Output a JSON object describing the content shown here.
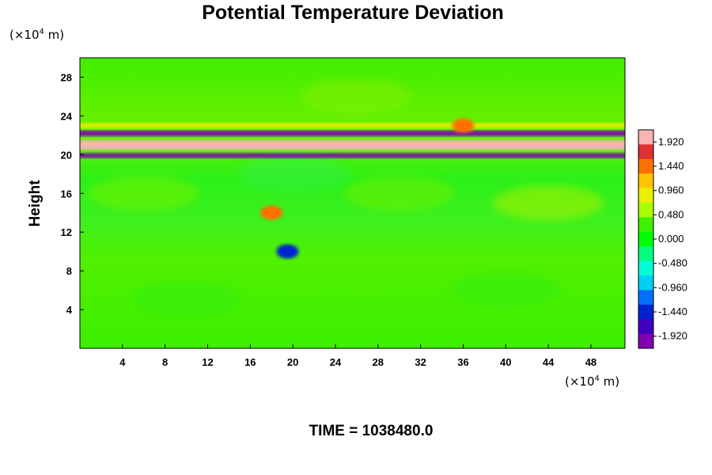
{
  "chart_data": {
    "type": "heatmap",
    "title": "Potential Temperature Deviation",
    "ylabel": "Height",
    "x_unit": {
      "prefix": "(×10",
      "exp": "4",
      "suffix": " m)"
    },
    "y_unit": {
      "prefix": "(×10",
      "exp": "4",
      "suffix": " m)"
    },
    "xlim": [
      0,
      51.2
    ],
    "ylim": [
      0,
      30
    ],
    "x_ticks": [
      "4",
      "8",
      "12",
      "16",
      "20",
      "24",
      "28",
      "32",
      "36",
      "40",
      "44",
      "48"
    ],
    "y_ticks": [
      "4",
      "8",
      "12",
      "16",
      "20",
      "24",
      "28"
    ],
    "colorbar": {
      "min": -2.16,
      "max": 2.16,
      "labels": [
        "1.920",
        "1.440",
        "0.960",
        "0.480",
        "0.000",
        "-0.480",
        "-0.960",
        "-1.440",
        "-1.920"
      ],
      "label_values": [
        1.92,
        1.44,
        0.96,
        0.48,
        0.0,
        -0.48,
        -0.96,
        -1.44,
        -1.92
      ],
      "colors": [
        "#f8b4b4",
        "#e03030",
        "#ff7000",
        "#ffc400",
        "#e8f000",
        "#a8ff00",
        "#40f000",
        "#00ff00",
        "#00ff80",
        "#00ffd8",
        "#00d0f0",
        "#0070ff",
        "#0020d0",
        "#4000c0",
        "#8000b0"
      ]
    },
    "background_value": 0.0,
    "features": [
      {
        "kind": "band",
        "y": 21.0,
        "thickness": 1.0,
        "value": 2.1
      },
      {
        "kind": "band",
        "y": 22.2,
        "thickness": 0.6,
        "value": -1.9
      },
      {
        "kind": "band",
        "y": 19.9,
        "thickness": 0.5,
        "value": -1.9
      },
      {
        "kind": "band",
        "y": 23.0,
        "thickness": 0.5,
        "value": 0.9
      },
      {
        "kind": "blob",
        "x": 18.0,
        "y": 14.0,
        "value": 1.5
      },
      {
        "kind": "blob",
        "x": 19.5,
        "y": 10.0,
        "value": -1.5
      },
      {
        "kind": "blob",
        "x": 36.0,
        "y": 23.0,
        "value": 1.4
      }
    ],
    "time_label": "TIME = 1038480.0"
  }
}
